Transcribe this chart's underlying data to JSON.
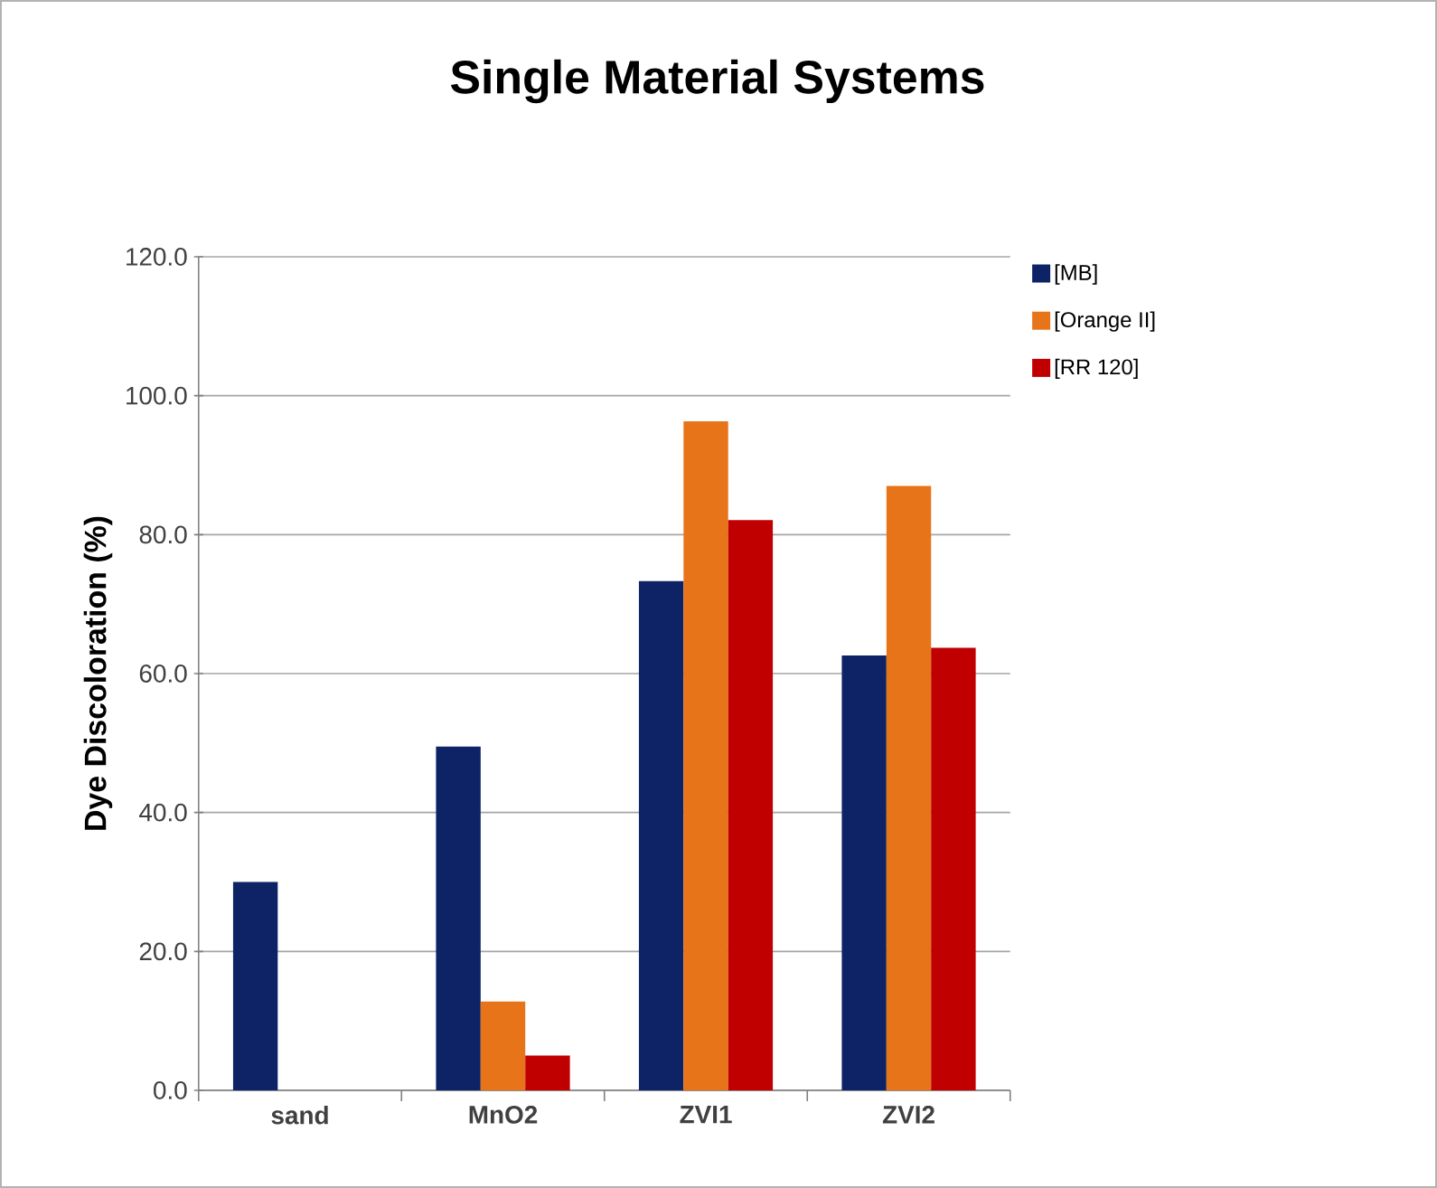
{
  "chart_data": {
    "type": "bar",
    "title": "Single Material Systems",
    "ylabel": "Dye Discoloration (%)",
    "categories": [
      "sand",
      "MnO2",
      "ZVI1",
      "ZVI2"
    ],
    "series": [
      {
        "name": "[MB]",
        "color": "#0d2366",
        "values": [
          30.0,
          49.5,
          73.3,
          62.6
        ]
      },
      {
        "name": "[Orange II]",
        "color": "#e8741a",
        "values": [
          null,
          12.8,
          96.3,
          87.0
        ]
      },
      {
        "name": "[RR 120]",
        "color": "#c00000",
        "values": [
          null,
          5.0,
          82.1,
          63.7
        ]
      }
    ],
    "ylim": [
      0,
      120
    ],
    "yticks": [
      {
        "value": 0,
        "label": "0.0"
      },
      {
        "value": 20,
        "label": "20.0"
      },
      {
        "value": 40,
        "label": "40.0"
      },
      {
        "value": 60,
        "label": "60.0"
      },
      {
        "value": 80,
        "label": "80.0"
      },
      {
        "value": 100,
        "label": "100.0"
      },
      {
        "value": 120,
        "label": "120.0"
      }
    ],
    "grid": "y",
    "legend": "top right"
  }
}
